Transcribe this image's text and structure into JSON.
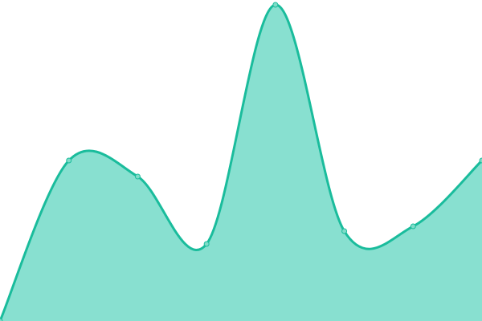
{
  "chart_data": {
    "type": "area",
    "title": "",
    "xlabel": "",
    "ylabel": "",
    "x": [
      0,
      1,
      2,
      3,
      4,
      5,
      6,
      7
    ],
    "series": [
      {
        "values": [
          0,
          50,
          45,
          24,
          98.5,
          28,
          29.5,
          50
        ]
      }
    ],
    "ylim": [
      0,
      100
    ],
    "xlim": [
      0,
      7
    ],
    "grid": false,
    "axes_visible": false,
    "smooth": true,
    "markers": true,
    "colors": {
      "line": "#1abc9c",
      "fill": "#88e0d0",
      "marker": "#7fdcc8"
    }
  }
}
